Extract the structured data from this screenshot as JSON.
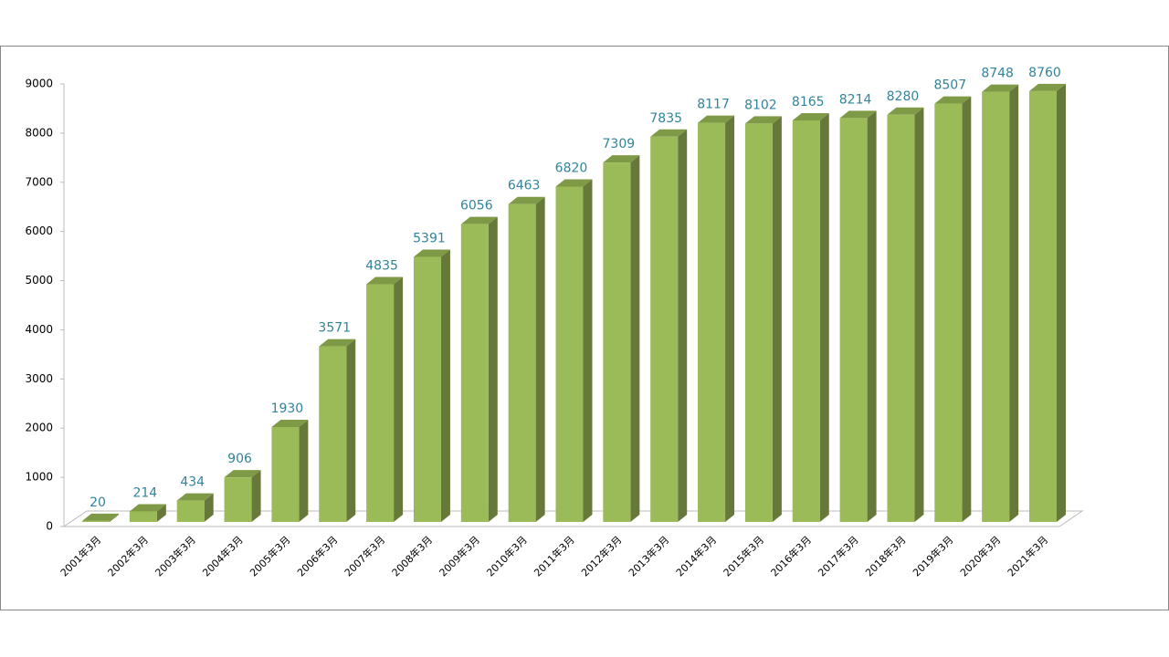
{
  "chart_data": {
    "type": "bar3d",
    "categories": [
      "2001年3月",
      "2002年3月",
      "2003年3月",
      "2004年3月",
      "2005年3月",
      "2006年3月",
      "2007年3月",
      "2008年3月",
      "2009年3月",
      "2010年3月",
      "2011年3月",
      "2012年3月",
      "2013年3月",
      "2014年3月",
      "2015年3月",
      "2016年3月",
      "2017年3月",
      "2018年3月",
      "2019年3月",
      "2020年3月",
      "2021年3月"
    ],
    "values": [
      20,
      214,
      434,
      906,
      1930,
      3571,
      4835,
      5391,
      6056,
      6463,
      6820,
      7309,
      7835,
      8117,
      8102,
      8165,
      8214,
      8280,
      8507,
      8748,
      8760
    ],
    "color": "#9bbb59",
    "ylim": [
      0,
      9000
    ],
    "yticks": [
      0,
      1000,
      2000,
      3000,
      4000,
      5000,
      6000,
      7000,
      8000,
      9000
    ]
  }
}
